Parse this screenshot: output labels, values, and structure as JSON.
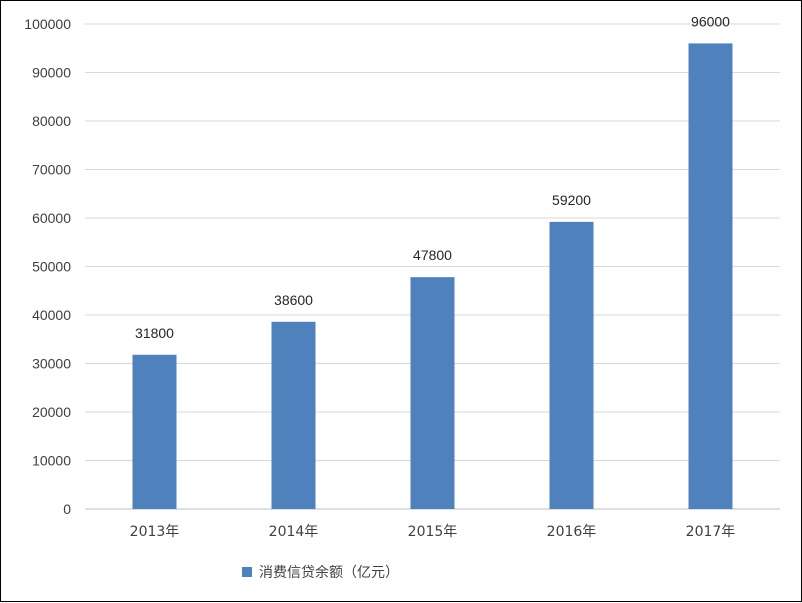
{
  "chart_data": {
    "type": "bar",
    "categories": [
      "2013年",
      "2014年",
      "2015年",
      "2016年",
      "2017年"
    ],
    "series": [
      {
        "name": "消费信贷余额（亿元）",
        "values": [
          31800,
          38600,
          47800,
          59200,
          96000
        ]
      }
    ],
    "data_labels": [
      "31800",
      "38600",
      "47800",
      "59200",
      "96000"
    ],
    "y_ticks": [
      "0",
      "10000",
      "20000",
      "30000",
      "40000",
      "50000",
      "60000",
      "70000",
      "80000",
      "90000",
      "100000"
    ],
    "ylim": [
      0,
      100000
    ],
    "title": "",
    "xlabel": "",
    "ylabel": "",
    "grid": true,
    "legend_position": "bottom",
    "colors": {
      "bar": "#4f81bd",
      "grid": "#d9d9d9",
      "axis": "#bfbfbf"
    }
  }
}
